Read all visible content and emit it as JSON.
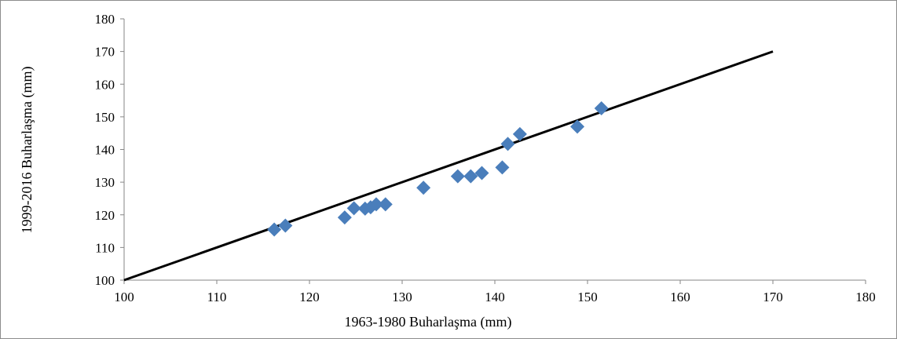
{
  "chart_data": {
    "type": "scatter",
    "title": "",
    "xlabel": "1963-1980 Buharlaşma (mm)",
    "ylabel": "1999-2016 Buharlaşma (mm)",
    "xlim": [
      100,
      180
    ],
    "ylim": [
      100,
      180
    ],
    "xticks": [
      100,
      110,
      120,
      130,
      140,
      150,
      160,
      170,
      180
    ],
    "yticks": [
      100,
      110,
      120,
      130,
      140,
      150,
      160,
      170,
      180
    ],
    "grid": false,
    "legend": "none",
    "series": [
      {
        "marker": "diamond",
        "color": "#4a7ebb",
        "points": [
          {
            "x": 116.2,
            "y": 115.5
          },
          {
            "x": 117.4,
            "y": 116.7
          },
          {
            "x": 123.8,
            "y": 119.2
          },
          {
            "x": 124.8,
            "y": 122.0
          },
          {
            "x": 126.0,
            "y": 121.9
          },
          {
            "x": 126.6,
            "y": 122.3
          },
          {
            "x": 127.2,
            "y": 123.2
          },
          {
            "x": 128.2,
            "y": 123.2
          },
          {
            "x": 132.3,
            "y": 128.3
          },
          {
            "x": 136.0,
            "y": 131.8
          },
          {
            "x": 137.4,
            "y": 131.8
          },
          {
            "x": 138.6,
            "y": 132.8
          },
          {
            "x": 140.8,
            "y": 134.5
          },
          {
            "x": 141.4,
            "y": 141.7
          },
          {
            "x": 142.7,
            "y": 144.7
          },
          {
            "x": 148.9,
            "y": 147.0
          },
          {
            "x": 151.5,
            "y": 152.6
          }
        ]
      }
    ],
    "reference_line": {
      "from": [
        100,
        100
      ],
      "to": [
        170,
        170
      ],
      "color": "#000000"
    }
  }
}
